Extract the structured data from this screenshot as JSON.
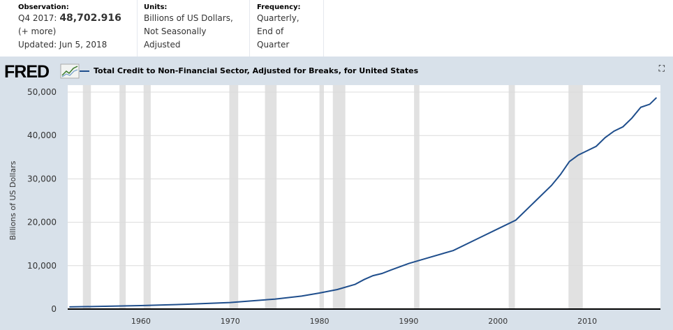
{
  "header": {
    "observation": {
      "label": "Observation:",
      "period": "Q4 2017:",
      "value": "48,702.916",
      "more": "(+ more)",
      "updated": "Updated: Jun 5, 2018"
    },
    "units": {
      "label": "Units:",
      "line1": "Billions of US Dollars,",
      "line2": "Not Seasonally Adjusted"
    },
    "frequency": {
      "label": "Frequency:",
      "line1": "Quarterly,",
      "line2": "End of Quarter"
    }
  },
  "logo": "FRED",
  "expand_icon": "fullscreen-icon",
  "chart_data": {
    "type": "line",
    "title": "Total Credit to Non-Financial Sector, Adjusted for Breaks, for United States",
    "ylabel": "Billions of US Dollars",
    "xlabel": "",
    "ylim": [
      0,
      50000
    ],
    "xlim": [
      1951.8,
      2018.2
    ],
    "yticks": [
      "0",
      "10,000",
      "20,000",
      "30,000",
      "40,000",
      "50,000"
    ],
    "xticks": [
      "1960",
      "1970",
      "1980",
      "1990",
      "2000",
      "2010"
    ],
    "grid": true,
    "color": "#1f4e8c",
    "recession_color": "#e1e1e1",
    "recessions": [
      [
        1953.5,
        1954.4
      ],
      [
        1957.6,
        1958.3
      ],
      [
        1960.3,
        1961.1
      ],
      [
        1969.9,
        1970.9
      ],
      [
        1973.9,
        1975.2
      ],
      [
        1980.0,
        1980.5
      ],
      [
        1981.5,
        1982.9
      ],
      [
        1990.6,
        1991.2
      ],
      [
        2001.2,
        2001.9
      ],
      [
        2007.9,
        2009.5
      ]
    ],
    "series": [
      {
        "x": [
          1952,
          1955,
          1960,
          1965,
          1970,
          1975,
          1978,
          1980,
          1982,
          1984,
          1985,
          1986,
          1987,
          1988,
          1990,
          1992,
          1995,
          1998,
          2000,
          2002,
          2004,
          2006,
          2007,
          2008,
          2009,
          2010,
          2011,
          2012,
          2013,
          2014,
          2015,
          2016,
          2017,
          2017.75
        ],
        "y": [
          500,
          600,
          800,
          1100,
          1500,
          2300,
          3000,
          3700,
          4500,
          5700,
          6800,
          7700,
          8200,
          9000,
          10500,
          11700,
          13500,
          16500,
          18500,
          20500,
          24500,
          28500,
          31000,
          34000,
          35500,
          36500,
          37500,
          39500,
          41000,
          42000,
          44000,
          46500,
          47200,
          48703
        ]
      }
    ]
  }
}
